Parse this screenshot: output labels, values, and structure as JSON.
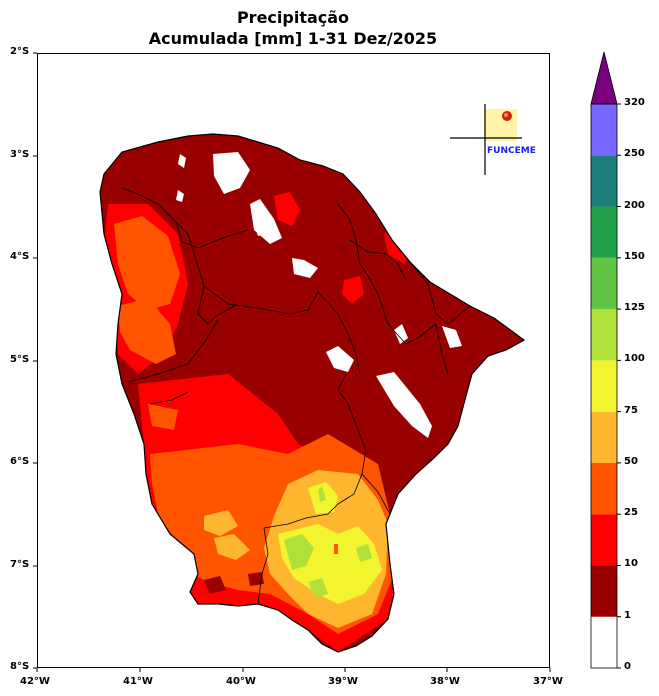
{
  "title": {
    "line1": "Precipitação",
    "line2": "Acumulada [mm] 1-31 Dez/2025"
  },
  "map": {
    "lon_range": [
      -42,
      -37
    ],
    "lat_range": [
      -8,
      -2
    ],
    "x_ticks": [
      "42°W",
      "41°W",
      "40°W",
      "39°W",
      "38°W",
      "37°W"
    ],
    "y_ticks": [
      "2°S",
      "3°S",
      "4°S",
      "5°S",
      "6°S",
      "7°S",
      "8°S"
    ],
    "region": "Ceará state with municipal/mesoregion boundaries, filled precipitation contours"
  },
  "logo": {
    "text": "FUNCEME",
    "text_color": "#1a1aff"
  },
  "colorbar": {
    "levels": [
      "0",
      "1",
      "10",
      "25",
      "50",
      "75",
      "100",
      "125",
      "150",
      "200",
      "250",
      "320"
    ],
    "colors": [
      "#ffffff",
      "#990000",
      "#ff0000",
      "#ff5500",
      "#ffb62f",
      "#f2f52e",
      "#b0e03a",
      "#62c444",
      "#22a34a",
      "#1a7f7a",
      "#7766ff"
    ],
    "extend_color": "#7a0080"
  },
  "legend_colors": {
    "c1": "#990000",
    "c2": "#ff0000",
    "c3": "#ff5500",
    "c4": "#ffb62f",
    "c5": "#f2f52e",
    "c6": "#b0e03a"
  }
}
